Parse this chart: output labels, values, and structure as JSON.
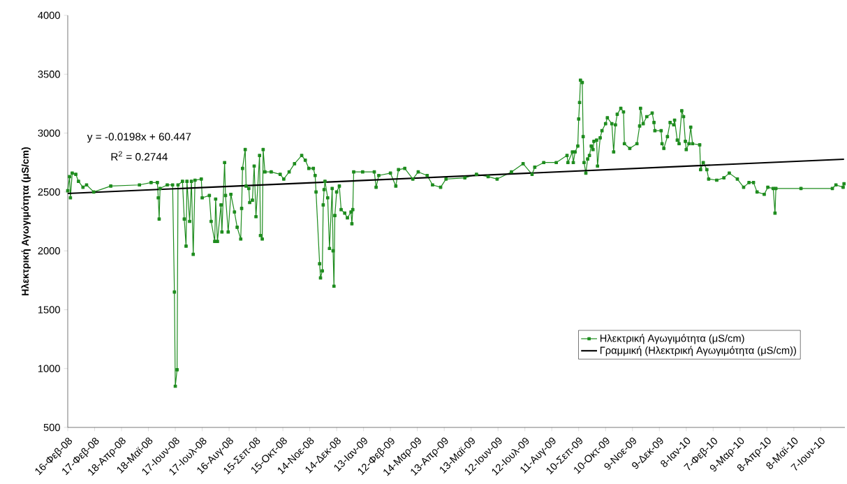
{
  "chart_data": {
    "type": "line",
    "ylabel": "Ηλεκτρική Αγωγιμότητα (μS/cm)",
    "annotations": [
      "y = -0.0198x + 60.447",
      "R$^{2}$ = 0.2744"
    ],
    "xlim": [
      "2008-02-18",
      "2010-07-04"
    ],
    "ylim": [
      500,
      4000
    ],
    "yticks": [
      500,
      1000,
      1500,
      2000,
      2500,
      3000,
      3500,
      4000
    ],
    "xticks": [
      {
        "value": "2008-02-18",
        "label": "16-Φεβ-08"
      },
      {
        "value": "2008-03-19",
        "label": "17-Φεβ-08"
      },
      {
        "value": "2008-04-18",
        "label": "18-Απρ-08"
      },
      {
        "value": "2008-05-18",
        "label": "18-Μαϊ-08"
      },
      {
        "value": "2008-06-17",
        "label": "17-Ιουν-08"
      },
      {
        "value": "2008-07-17",
        "label": "17-Ιουλ-08"
      },
      {
        "value": "2008-08-16",
        "label": "16-Αυγ-08"
      },
      {
        "value": "2008-09-15",
        "label": "15-Σεπ-08"
      },
      {
        "value": "2008-10-15",
        "label": "15-Οκτ-08"
      },
      {
        "value": "2008-11-14",
        "label": "14-Νοε-08"
      },
      {
        "value": "2008-12-14",
        "label": "14-Δεκ-08"
      },
      {
        "value": "2009-01-13",
        "label": "13-Ιαν-09"
      },
      {
        "value": "2009-02-12",
        "label": "12-Φεβ-09"
      },
      {
        "value": "2009-03-14",
        "label": "14-Μαρ-09"
      },
      {
        "value": "2009-04-13",
        "label": "13-Απρ-09"
      },
      {
        "value": "2009-05-13",
        "label": "13-Μαϊ-09"
      },
      {
        "value": "2009-06-12",
        "label": "12-Ιουν-09"
      },
      {
        "value": "2009-07-12",
        "label": "12-Ιουλ-09"
      },
      {
        "value": "2009-08-11",
        "label": "11-Αυγ-09"
      },
      {
        "value": "2009-09-10",
        "label": "10-Σεπ-09"
      },
      {
        "value": "2009-10-10",
        "label": "10-Οκτ-09"
      },
      {
        "value": "2009-11-09",
        "label": "9-Νοε-09"
      },
      {
        "value": "2009-12-09",
        "label": "9-Δεκ-09"
      },
      {
        "value": "2010-01-08",
        "label": "8-Ιαν-10"
      },
      {
        "value": "2010-02-07",
        "label": "7-Φεβ-10"
      },
      {
        "value": "2010-03-09",
        "label": "9-Μαρ-10"
      },
      {
        "value": "2010-04-08",
        "label": "8-Απρ-10"
      },
      {
        "value": "2010-05-08",
        "label": "8-Μαϊ-10"
      },
      {
        "value": "2010-06-07",
        "label": "7-Ιουν-10"
      }
    ],
    "marker": "square",
    "legend": "bottom right",
    "grid": false,
    "series": [
      {
        "name": "Ηλεκτρική Αγωγιμότητα (μS/cm)",
        "color": "#1e8c1e",
        "x": [
          "2008-02-18",
          "2008-02-20",
          "2008-02-21",
          "2008-02-23",
          "2008-02-27",
          "2008-03-01",
          "2008-03-06",
          "2008-03-10",
          "2008-03-18",
          "2008-04-06",
          "2008-05-08",
          "2008-05-21",
          "2008-05-28",
          "2008-05-29",
          "2008-05-30",
          "2008-05-31",
          "2008-06-08",
          "2008-06-14",
          "2008-06-16",
          "2008-06-17",
          "2008-06-19",
          "2008-06-20",
          "2008-06-25",
          "2008-06-27",
          "2008-06-29",
          "2008-06-30",
          "2008-07-03",
          "2008-07-05",
          "2008-07-07",
          "2008-07-09",
          "2008-07-16",
          "2008-07-17",
          "2008-07-25",
          "2008-07-27",
          "2008-07-31",
          "2008-08-01",
          "2008-08-03",
          "2008-08-07",
          "2008-08-08",
          "2008-08-11",
          "2008-08-12",
          "2008-08-15",
          "2008-08-18",
          "2008-08-22",
          "2008-08-25",
          "2008-08-29",
          "2008-08-30",
          "2008-08-31",
          "2008-09-03",
          "2008-09-04",
          "2008-09-07",
          "2008-09-08",
          "2008-09-11",
          "2008-09-13",
          "2008-09-15",
          "2008-09-19",
          "2008-09-20",
          "2008-09-22",
          "2008-09-23",
          "2008-09-25",
          "2008-10-02",
          "2008-10-12",
          "2008-10-16",
          "2008-10-22",
          "2008-10-28",
          "2008-11-05",
          "2008-11-09",
          "2008-11-13",
          "2008-11-18",
          "2008-11-20",
          "2008-11-21",
          "2008-11-25",
          "2008-11-26",
          "2008-11-28",
          "2008-11-29",
          "2008-11-30",
          "2008-12-01",
          "2008-12-04",
          "2008-12-06",
          "2008-12-09",
          "2008-12-10",
          "2008-12-11",
          "2008-12-12",
          "2008-12-14",
          "2008-12-17",
          "2008-12-19",
          "2008-12-23",
          "2008-12-26",
          "2008-12-30",
          "2008-12-31",
          "2009-01-01",
          "2009-01-02",
          "2009-01-12",
          "2009-01-25",
          "2009-01-27",
          "2009-01-30",
          "2009-02-12",
          "2009-02-18",
          "2009-02-21",
          "2009-02-28",
          "2009-03-09",
          "2009-03-15",
          "2009-03-25",
          "2009-03-31",
          "2009-04-09",
          "2009-04-15",
          "2009-05-06",
          "2009-05-19",
          "2009-06-01",
          "2009-06-11",
          "2009-06-27",
          "2009-07-10",
          "2009-07-20",
          "2009-07-23",
          "2009-08-02",
          "2009-08-16",
          "2009-08-28",
          "2009-08-29",
          "2009-09-03",
          "2009-09-04",
          "2009-09-06",
          "2009-09-09",
          "2009-09-10",
          "2009-09-11",
          "2009-09-12",
          "2009-09-14",
          "2009-09-15",
          "2009-09-16",
          "2009-09-18",
          "2009-09-20",
          "2009-09-22",
          "2009-09-24",
          "2009-09-26",
          "2009-09-27",
          "2009-09-30",
          "2009-10-01",
          "2009-10-04",
          "2009-10-06",
          "2009-10-10",
          "2009-10-12",
          "2009-10-17",
          "2009-10-19",
          "2009-10-21",
          "2009-10-23",
          "2009-10-27",
          "2009-10-30",
          "2009-10-31",
          "2009-11-06",
          "2009-11-14",
          "2009-11-17",
          "2009-11-18",
          "2009-11-21",
          "2009-11-25",
          "2009-12-01",
          "2009-12-03",
          "2009-12-04",
          "2009-12-11",
          "2009-12-12",
          "2009-12-14",
          "2009-12-18",
          "2009-12-21",
          "2009-12-25",
          "2009-12-26",
          "2009-12-29",
          "2009-12-31",
          "2010-01-03",
          "2010-01-05",
          "2010-01-07",
          "2010-01-08",
          "2010-01-11",
          "2010-01-13",
          "2010-01-15",
          "2010-01-23",
          "2010-01-24",
          "2010-01-27",
          "2010-01-31",
          "2010-02-02",
          "2010-02-11",
          "2010-02-19",
          "2010-02-25",
          "2010-03-06",
          "2010-03-13",
          "2010-03-19",
          "2010-03-24",
          "2010-03-28",
          "2010-04-05",
          "2010-04-09",
          "2010-04-15",
          "2010-04-17",
          "2010-04-18",
          "2010-05-16",
          "2010-06-20",
          "2010-06-24",
          "2010-07-02",
          "2010-07-03"
        ],
        "values": [
          2510,
          2630,
          2450,
          2660,
          2650,
          2590,
          2540,
          2560,
          2500,
          2550,
          2560,
          2580,
          2580,
          2450,
          2270,
          2530,
          2560,
          2560,
          1650,
          850,
          990,
          2560,
          2590,
          2270,
          2040,
          2590,
          2250,
          2590,
          1970,
          2600,
          2610,
          2450,
          2470,
          2250,
          2080,
          2440,
          2080,
          2390,
          2160,
          2750,
          2470,
          2160,
          2480,
          2330,
          2200,
          2100,
          2360,
          2700,
          2860,
          2550,
          2530,
          2410,
          2430,
          2720,
          2290,
          2810,
          2130,
          2100,
          2860,
          2670,
          2670,
          2650,
          2610,
          2670,
          2740,
          2810,
          2770,
          2700,
          2700,
          2640,
          2500,
          1890,
          1770,
          1830,
          2390,
          2520,
          2590,
          2450,
          2020,
          2530,
          2000,
          1700,
          2300,
          2500,
          2550,
          2350,
          2320,
          2280,
          2330,
          2230,
          2350,
          2670,
          2670,
          2670,
          2540,
          2640,
          2660,
          2550,
          2690,
          2700,
          2610,
          2670,
          2640,
          2560,
          2540,
          2610,
          2620,
          2650,
          2630,
          2610,
          2670,
          2740,
          2650,
          2710,
          2750,
          2750,
          2810,
          2750,
          2840,
          2750,
          2840,
          2890,
          3120,
          3260,
          3450,
          3430,
          2970,
          2750,
          2660,
          2780,
          2810,
          2890,
          2860,
          2930,
          2940,
          2720,
          2960,
          3020,
          3080,
          3130,
          3080,
          2840,
          3070,
          3160,
          3210,
          3180,
          2910,
          2870,
          2910,
          3060,
          3210,
          3080,
          3140,
          3170,
          3090,
          3020,
          3020,
          2910,
          2870,
          2970,
          3090,
          3070,
          3110,
          2940,
          2910,
          3190,
          3140,
          2930,
          2860,
          2910,
          3050,
          2910,
          2900,
          2690,
          2750,
          2690,
          2610,
          2600,
          2620,
          2660,
          2610,
          2540,
          2580,
          2580,
          2500,
          2480,
          2540,
          2530,
          2320,
          2530,
          2530,
          2530,
          2560,
          2540,
          2570
        ]
      },
      {
        "type": "line",
        "name": "Γραμμική (Ηλεκτρική Αγωγιμότητα (μS/cm))",
        "color": "#000000",
        "marker": "none",
        "x": [
          "2008-02-18",
          "2010-07-03"
        ],
        "values": [
          2487,
          2778
        ]
      }
    ]
  }
}
